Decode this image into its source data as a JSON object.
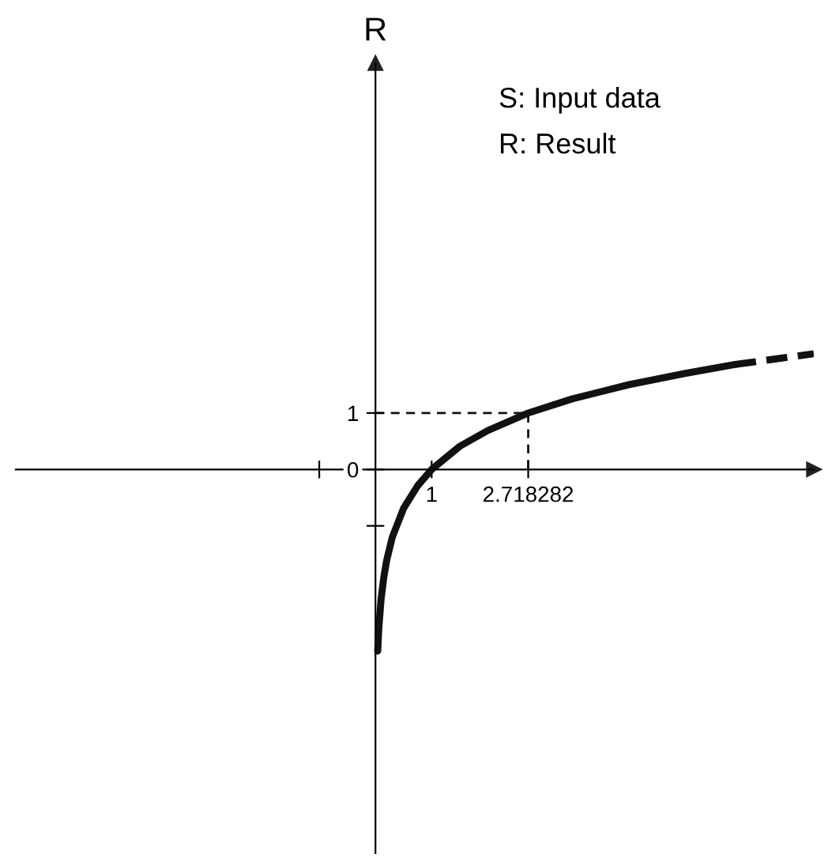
{
  "chart_data": {
    "type": "line",
    "ylabel": "R",
    "annotations": [
      "S: Input data",
      "R: Result"
    ],
    "series": [
      {
        "color": "#111111",
        "line_style": "solid",
        "x": [
          0.04,
          0.06,
          0.1,
          0.15,
          0.2,
          0.3,
          0.5,
          0.75,
          1,
          1.5,
          2,
          2.718282,
          3.5,
          4.5,
          5.5,
          6.4
        ],
        "values": [
          -3.22,
          -2.81,
          -2.3,
          -1.9,
          -1.61,
          -1.2,
          -0.69,
          -0.29,
          0,
          0.41,
          0.69,
          1,
          1.25,
          1.5,
          1.7,
          1.86
        ]
      },
      {
        "color": "#111111",
        "line_style": "dashed",
        "x": [
          6.4,
          7.8
        ],
        "values": [
          1.86,
          2.05
        ]
      },
      {
        "color": "#111111",
        "line_style": "dotted",
        "x": [
          0,
          2.718282,
          2.718282
        ],
        "values": [
          1,
          1,
          0
        ]
      }
    ],
    "xlim": [
      -6.4,
      7.8
    ],
    "ylim": [
      -6.8,
      7.2
    ],
    "xticks": [
      {
        "value": -1,
        "label": null
      },
      1,
      2.718282
    ],
    "yticks": [
      {
        "value": -1,
        "label": null
      },
      0,
      1
    ],
    "grid": false,
    "legend": false
  }
}
